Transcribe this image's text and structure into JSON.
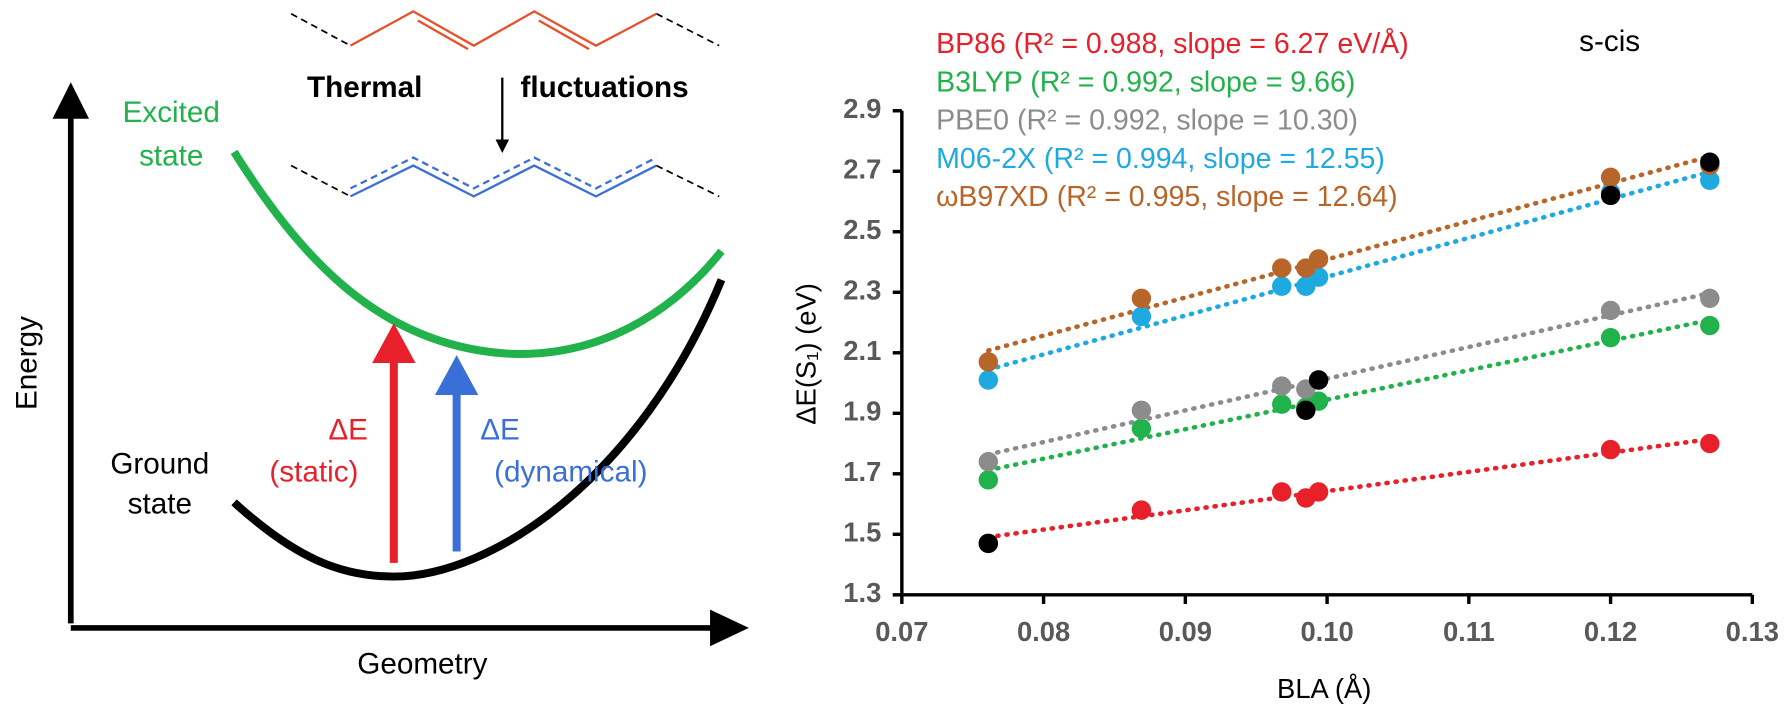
{
  "diagram": {
    "molecule_arrow_label": [
      "Thermal",
      "fluctuations"
    ],
    "excited_label": [
      "Excited",
      "state"
    ],
    "ground_label": [
      "Ground",
      "state"
    ],
    "y_axis_label": "Energy",
    "x_axis_label": "Geometry",
    "static_label": [
      "ΔE",
      "(static)"
    ],
    "dynamical_label": [
      "ΔE",
      "(dynamical)"
    ]
  },
  "chart_data": {
    "type": "scatter",
    "annotation": "s-cis",
    "xlabel": "BLA (Å)",
    "ylabel": "ΔE(S₁) (eV)",
    "xlim": [
      0.07,
      0.13
    ],
    "ylim": [
      1.3,
      2.9
    ],
    "xticks": [
      0.07,
      0.08,
      0.09,
      {
        "value": 0.1,
        "label": "0.10"
      },
      0.11,
      0.12,
      0.13
    ],
    "yticks": [
      1.3,
      1.5,
      1.7,
      1.9,
      2.1,
      2.3,
      2.5,
      2.7,
      2.9
    ],
    "trendline": true,
    "x": [
      0.0761,
      0.0869,
      0.0968,
      0.0985,
      0.0994,
      0.12,
      0.127
    ],
    "series": [
      {
        "name": "BP86 (R² = 0.988, slope = 6.27 eV/Å)",
        "color": "#e8202a",
        "values": [
          1.47,
          1.58,
          1.64,
          1.62,
          1.64,
          1.78,
          1.8
        ]
      },
      {
        "name": "B3LYP (R² = 0.992, slope = 9.66)",
        "color": "#22b24c",
        "values": [
          1.68,
          1.85,
          1.93,
          1.92,
          1.94,
          2.15,
          2.19
        ]
      },
      {
        "name": "PBE0 (R² = 0.992, slope = 10.30)",
        "color": "#8c8c8c",
        "values": [
          1.74,
          1.91,
          1.99,
          1.98,
          2.01,
          2.24,
          2.28
        ]
      },
      {
        "name": "M06-2X (R² = 0.994, slope = 12.55)",
        "color": "#1fa9e1",
        "values": [
          2.01,
          2.22,
          2.32,
          2.32,
          2.35,
          2.63,
          2.67
        ]
      },
      {
        "name": "ωB97XD (R² = 0.995, slope = 12.64)",
        "color": "#b8652a",
        "values": [
          2.07,
          2.28,
          2.38,
          2.38,
          2.41,
          2.68,
          2.72
        ]
      },
      {
        "color": "#000000",
        "values": [
          1.47,
          null,
          null,
          1.91,
          2.01,
          2.62,
          2.73
        ]
      }
    ]
  }
}
